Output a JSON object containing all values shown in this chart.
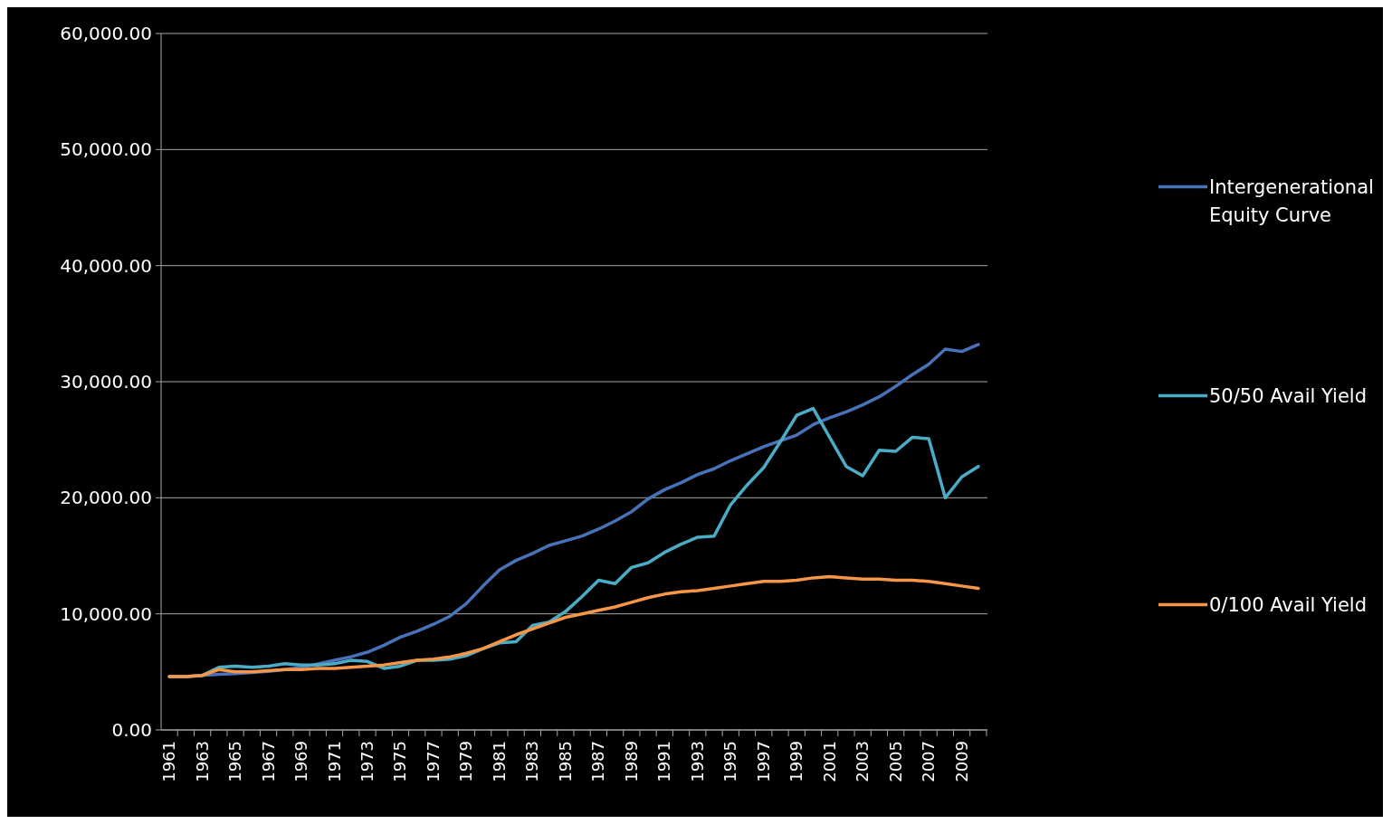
{
  "chart_data": {
    "type": "line",
    "categories": [
      "1961",
      null,
      "1963",
      null,
      "1965",
      null,
      "1967",
      null,
      "1969",
      null,
      "1971",
      null,
      "1973",
      null,
      "1975",
      null,
      "1977",
      null,
      "1979",
      null,
      "1981",
      null,
      "1983",
      null,
      "1985",
      null,
      "1987",
      null,
      "1989",
      null,
      "1991",
      null,
      "1993",
      null,
      "1995",
      null,
      "1997",
      null,
      "1999",
      null,
      "2001",
      null,
      "2003",
      null,
      "2005",
      null,
      "2007",
      null,
      "2009",
      null
    ],
    "series": [
      {
        "name": "Intergenerational Equity Curve",
        "color": "#4a72b8",
        "values": [
          4600,
          4600,
          4700,
          4800,
          4850,
          4950,
          5050,
          5200,
          5400,
          5700,
          6000,
          6300,
          6700,
          7300,
          8000,
          8500,
          9100,
          9800,
          10900,
          12400,
          13800,
          14600,
          15200,
          15900,
          16300,
          16700,
          17300,
          18000,
          18800,
          19900,
          20700,
          21300,
          22000,
          22500,
          23200,
          23800,
          24400,
          24900,
          25400,
          26300,
          26900,
          27400,
          28000,
          28700,
          29600,
          30600,
          31500,
          32800,
          32600,
          33200
        ]
      },
      {
        "name": "50/50 Avail Yield",
        "color": "#4bacc6",
        "values": [
          4600,
          4600,
          4700,
          5400,
          5500,
          5400,
          5500,
          5700,
          5600,
          5600,
          5700,
          6000,
          5900,
          5300,
          5500,
          6000,
          6000,
          6100,
          6400,
          7000,
          7500,
          7600,
          9000,
          9300,
          10200,
          11500,
          12900,
          12600,
          14000,
          14400,
          15300,
          16000,
          16600,
          16700,
          19400,
          21100,
          22600,
          24800,
          27100,
          27700,
          25200,
          22700,
          21900,
          24100,
          24000,
          25200,
          25100,
          20000,
          21800,
          22700
        ]
      },
      {
        "name": "0/100 Avail Yield",
        "color": "#f79646",
        "values": [
          4600,
          4600,
          4700,
          5200,
          5000,
          5000,
          5100,
          5200,
          5200,
          5300,
          5300,
          5400,
          5500,
          5600,
          5800,
          6000,
          6100,
          6300,
          6600,
          7000,
          7600,
          8200,
          8700,
          9200,
          9700,
          10000,
          10300,
          10600,
          11000,
          11400,
          11700,
          11900,
          12000,
          12200,
          12400,
          12600,
          12800,
          12800,
          12900,
          13100,
          13200,
          13100,
          13000,
          13000,
          12900,
          12900,
          12800,
          12600,
          12400,
          12200
        ]
      }
    ],
    "ylim": [
      0,
      60000
    ],
    "yticks": [
      {
        "value": 0,
        "label": "0.00"
      },
      {
        "value": 10000,
        "label": "10,000.00"
      },
      {
        "value": 20000,
        "label": "20,000.00"
      },
      {
        "value": 30000,
        "label": "30,000.00"
      },
      {
        "value": 40000,
        "label": "40,000.00"
      },
      {
        "value": 50000,
        "label": "50,000.00"
      },
      {
        "value": 60000,
        "label": "60,000.00"
      }
    ],
    "grid": "y",
    "legend": "right",
    "marker": "none",
    "line_style": "solid"
  }
}
